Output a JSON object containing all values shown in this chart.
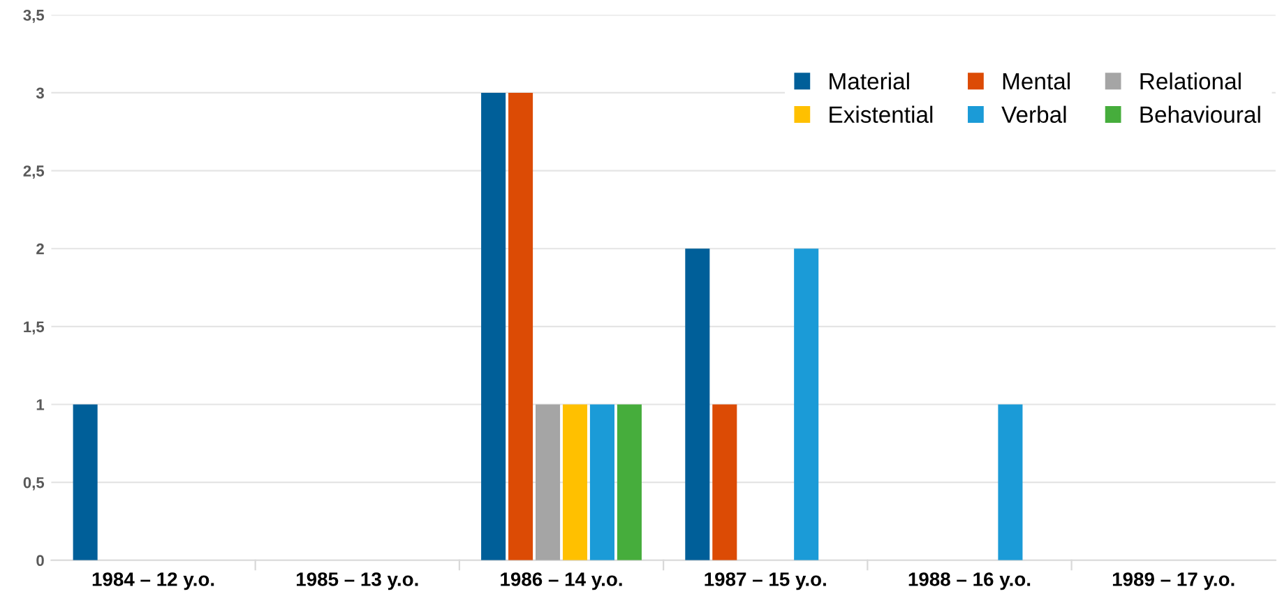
{
  "chart_data": {
    "type": "bar",
    "categories": [
      "1984 – 12 y.o.",
      "1985 – 13 y.o.",
      "1986 – 14 y.o.",
      "1987 – 15 y.o.",
      "1988 – 16 y.o.",
      "1989 – 17 y.o."
    ],
    "series": [
      {
        "name": "Material",
        "color": "#005f99",
        "values": [
          1,
          0,
          3,
          2,
          0,
          0
        ]
      },
      {
        "name": "Mental",
        "color": "#dc4b05",
        "values": [
          0,
          0,
          3,
          1,
          0,
          0
        ]
      },
      {
        "name": "Relational",
        "color": "#a5a5a5",
        "values": [
          0,
          0,
          1,
          0,
          0,
          0
        ]
      },
      {
        "name": "Existential",
        "color": "#ffc000",
        "values": [
          0,
          0,
          1,
          0,
          0,
          0
        ]
      },
      {
        "name": "Verbal",
        "color": "#1b9bd7",
        "values": [
          0,
          0,
          1,
          2,
          1,
          0
        ]
      },
      {
        "name": "Behavioural",
        "color": "#46ad3c",
        "values": [
          0,
          0,
          1,
          0,
          0,
          0
        ]
      }
    ],
    "ylim": [
      0,
      3.5
    ],
    "yticks": [
      {
        "value": 0,
        "label": "0"
      },
      {
        "value": 0.5,
        "label": "0,5"
      },
      {
        "value": 1,
        "label": "1"
      },
      {
        "value": 1.5,
        "label": "1,5"
      },
      {
        "value": 2,
        "label": "2"
      },
      {
        "value": 2.5,
        "label": "2,5"
      },
      {
        "value": 3,
        "label": "3"
      },
      {
        "value": 3.5,
        "label": "3,5"
      }
    ],
    "grid": "y",
    "legend": "top right"
  }
}
